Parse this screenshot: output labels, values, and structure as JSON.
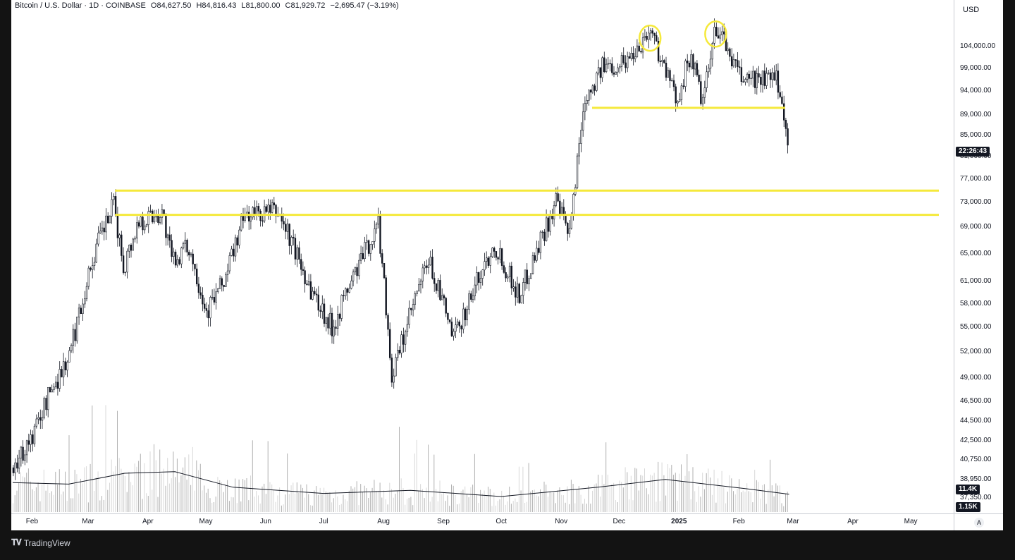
{
  "legend": {
    "symbol": "Bitcoin / U.S. Dollar · 1D · COINBASE",
    "open": "O84,627.50",
    "high": "H84,816.43",
    "low": "L81,800.00",
    "close": "C81,929.72",
    "change": "−2,695.47 (−3.19%)"
  },
  "price_axis": {
    "currency": "USD",
    "countdown": "22:26:43",
    "volume_tag": "11.4K",
    "volume_ma_tag": "1.15K"
  },
  "footer": {
    "brand": "TradingView",
    "auto_button": "A"
  },
  "colors": {
    "up": "#131722",
    "down": "#131722",
    "annotation": "#f5e93b",
    "volume": "#c4c4c4"
  },
  "chart_data": {
    "type": "candlestick",
    "symbol": "Bitcoin / U.S. Dollar",
    "interval": "1D",
    "exchange": "COINBASE",
    "price_ticks": [
      104000,
      99000,
      94000,
      89000,
      85000,
      81000,
      77000,
      73000,
      69000,
      65000,
      61000,
      58000,
      55000,
      52000,
      49000,
      46500,
      44500,
      42500,
      40750,
      38950,
      37350
    ],
    "price_tick_labels": [
      "104,000.00",
      "99,000.00",
      "94,000.00",
      "89,000.00",
      "85,000.00",
      "81,000.00",
      "77,000.00",
      "73,000.00",
      "69,000.00",
      "65,000.00",
      "61,000.00",
      "58,000.00",
      "55,000.00",
      "52,000.00",
      "49,000.00",
      "46,500.00",
      "44,500.00",
      "42,500.00",
      "40,750.00",
      "38,950.00",
      "37,350.00"
    ],
    "time_labels": [
      "Feb",
      "Mar",
      "Apr",
      "May",
      "Jun",
      "Jul",
      "Aug",
      "Sep",
      "Oct",
      "Nov",
      "Dec",
      "2025",
      "Feb",
      "Mar",
      "Apr",
      "May"
    ],
    "price_series": [
      [
        "2024-01-22",
        40000
      ],
      [
        "2024-02-01",
        43000
      ],
      [
        "2024-02-10",
        47500
      ],
      [
        "2024-02-20",
        51500
      ],
      [
        "2024-03-01",
        62000
      ],
      [
        "2024-03-05",
        66000
      ],
      [
        "2024-03-14",
        72500
      ],
      [
        "2024-03-19",
        63000
      ],
      [
        "2024-03-27",
        70000
      ],
      [
        "2024-04-08",
        71500
      ],
      [
        "2024-04-13",
        64000
      ],
      [
        "2024-04-22",
        66000
      ],
      [
        "2024-05-01",
        57000
      ],
      [
        "2024-05-10",
        61000
      ],
      [
        "2024-05-21",
        71000
      ],
      [
        "2024-06-07",
        71500
      ],
      [
        "2024-06-24",
        60000
      ],
      [
        "2024-07-05",
        55000
      ],
      [
        "2024-07-29",
        69500
      ],
      [
        "2024-08-05",
        49000
      ],
      [
        "2024-08-24",
        64000
      ],
      [
        "2024-09-06",
        53500
      ],
      [
        "2024-09-27",
        66500
      ],
      [
        "2024-10-10",
        59000
      ],
      [
        "2024-10-29",
        73000
      ],
      [
        "2024-11-05",
        67500
      ],
      [
        "2024-11-13",
        93000
      ],
      [
        "2024-11-22",
        99000
      ],
      [
        "2024-12-05",
        101000
      ],
      [
        "2024-12-17",
        108000
      ],
      [
        "2024-12-30",
        92000
      ],
      [
        "2025-01-07",
        102000
      ],
      [
        "2025-01-13",
        91000
      ],
      [
        "2025-01-20",
        109000
      ],
      [
        "2025-02-01",
        97000
      ],
      [
        "2025-02-21",
        96000
      ],
      [
        "2025-02-25",
        86000
      ],
      [
        "2025-02-27",
        82000
      ]
    ],
    "volume_series": [
      [
        "2024-01-22",
        4.5
      ],
      [
        "2024-03-05",
        8.5
      ],
      [
        "2024-03-19",
        6.0
      ],
      [
        "2024-04-13",
        5.5
      ],
      [
        "2024-05-01",
        4.0
      ],
      [
        "2024-08-05",
        7.5
      ],
      [
        "2024-09-06",
        3.5
      ],
      [
        "2024-11-06",
        5.5
      ],
      [
        "2024-11-13",
        5.0
      ],
      [
        "2024-12-17",
        4.5
      ],
      [
        "2025-01-20",
        4.0
      ],
      [
        "2025-02-25",
        4.0
      ]
    ],
    "volume_ma_series": [
      [
        "2024-01-22",
        1.9
      ],
      [
        "2024-02-20",
        1.8
      ],
      [
        "2024-03-20",
        2.5
      ],
      [
        "2024-04-15",
        2.6
      ],
      [
        "2024-05-15",
        1.6
      ],
      [
        "2024-07-01",
        1.2
      ],
      [
        "2024-08-15",
        1.4
      ],
      [
        "2024-10-01",
        1.0
      ],
      [
        "2024-11-20",
        1.6
      ],
      [
        "2024-12-25",
        2.1
      ],
      [
        "2025-02-05",
        1.5
      ],
      [
        "2025-02-27",
        1.15
      ]
    ],
    "annotations": [
      {
        "type": "horizontal-line",
        "price": 75000,
        "from": "2024-03-15",
        "to": "2025-05-31"
      },
      {
        "type": "horizontal-line",
        "price": 71000,
        "from": "2024-03-15",
        "to": "2025-05-31"
      },
      {
        "type": "horizontal-line",
        "price": 90500,
        "from": "2024-11-17",
        "to": "2025-02-25"
      },
      {
        "type": "circle",
        "date": "2024-12-17",
        "price": 106000
      },
      {
        "type": "circle",
        "date": "2025-01-20",
        "price": 107000
      }
    ]
  }
}
